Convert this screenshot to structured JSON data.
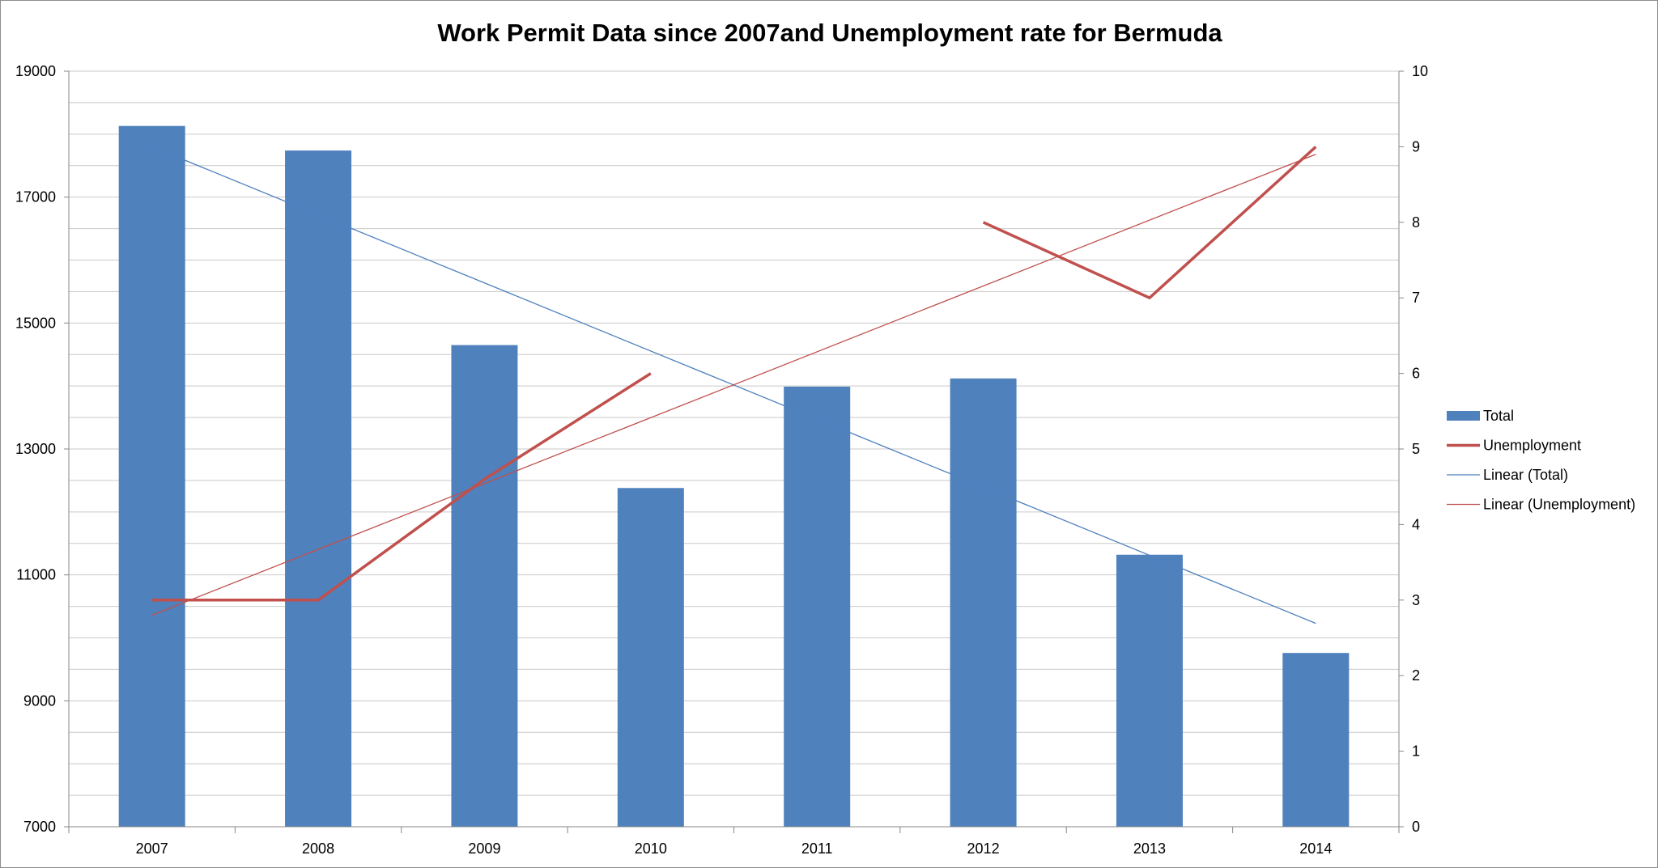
{
  "chart_data": {
    "type": "bar",
    "title": "Work Permit Data since 2007and Unemployment rate for Bermuda",
    "categories": [
      "2007",
      "2008",
      "2009",
      "2010",
      "2011",
      "2012",
      "2013",
      "2014"
    ],
    "series": [
      {
        "name": "Total",
        "type": "bar",
        "axis": "left",
        "color": "#4f81bd",
        "values": [
          18130,
          17740,
          14650,
          12380,
          13990,
          14120,
          11320,
          9760
        ]
      },
      {
        "name": "Unemployment",
        "type": "line",
        "axis": "right",
        "color": "#c0504d",
        "values": [
          3,
          3,
          4.6,
          6,
          null,
          8,
          7,
          9
        ]
      },
      {
        "name": "Linear (Total)",
        "type": "trendline",
        "axis": "left",
        "color": "#4f81bd",
        "start": 17800,
        "end": 10230
      },
      {
        "name": "Linear (Unemployment)",
        "type": "trendline",
        "axis": "right",
        "color": "#c0504d",
        "start": 2.8,
        "end": 8.9
      }
    ],
    "y_left": {
      "ylim": [
        7000,
        19000
      ],
      "ticks": [
        "7000",
        "9000",
        "11000",
        "13000",
        "15000",
        "17000",
        "19000"
      ]
    },
    "y_right": {
      "ylim": [
        0,
        10
      ],
      "ticks": [
        "0",
        "1",
        "2",
        "3",
        "4",
        "5",
        "6",
        "7",
        "8",
        "9",
        "10"
      ]
    },
    "xlabel": "",
    "ylabel": "",
    "grid": true,
    "legend": "right"
  }
}
